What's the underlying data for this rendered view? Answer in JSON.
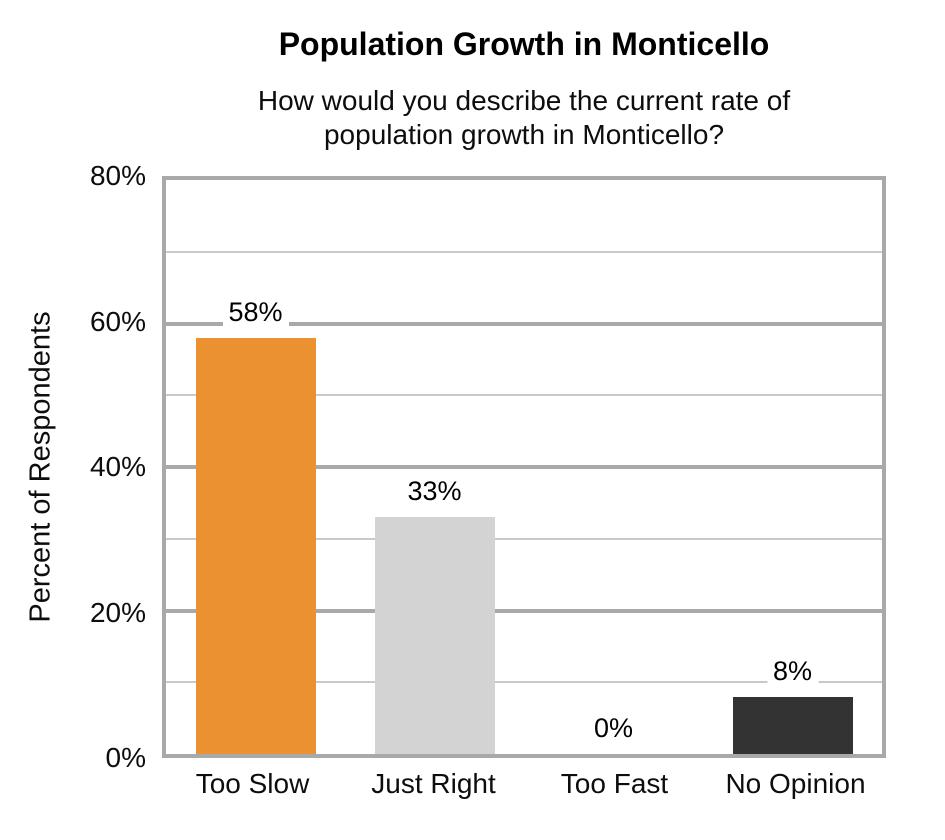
{
  "chart_data": {
    "type": "bar",
    "title": "Population Growth in Monticello",
    "subtitle_lines": [
      "How would you describe the current rate of",
      "population growth in Monticello?"
    ],
    "ylabel": "Percent of Respondents",
    "xlabel": "",
    "categories": [
      "Too Slow",
      "Just Right",
      "Too Fast",
      "No Opinion"
    ],
    "values": [
      58,
      33,
      0,
      8
    ],
    "bar_labels": [
      "58%",
      "33%",
      "0%",
      "8%"
    ],
    "bar_colors": [
      "#EC9132",
      "#D3D3D3",
      null,
      "#333333"
    ],
    "yticks": [
      "0%",
      "20%",
      "40%",
      "60%",
      "80%"
    ],
    "ylim": [
      0,
      80
    ],
    "grid": {
      "major_interval": 20,
      "minor_interval": 10,
      "major_color": "#A9A9A9",
      "minor_color": "#C9C9C9"
    },
    "legend_position": "none"
  }
}
